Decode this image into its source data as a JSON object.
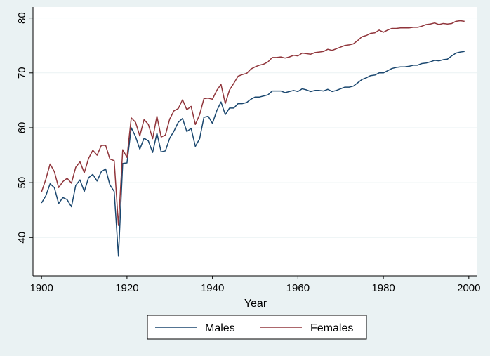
{
  "chart_data": {
    "type": "line",
    "title": "",
    "xlabel": "Year",
    "ylabel": "",
    "xlim": [
      1898,
      2002
    ],
    "ylim": [
      33,
      82
    ],
    "x_ticks": [
      1900,
      1920,
      1940,
      1960,
      1980,
      2000
    ],
    "y_ticks": [
      40,
      50,
      60,
      70,
      80
    ],
    "grid": "horizontal",
    "legend": "bottom",
    "x": [
      1900,
      1901,
      1902,
      1903,
      1904,
      1905,
      1906,
      1907,
      1908,
      1909,
      1910,
      1911,
      1912,
      1913,
      1914,
      1915,
      1916,
      1917,
      1918,
      1919,
      1920,
      1921,
      1922,
      1923,
      1924,
      1925,
      1926,
      1927,
      1928,
      1929,
      1930,
      1931,
      1932,
      1933,
      1934,
      1935,
      1936,
      1937,
      1938,
      1939,
      1940,
      1941,
      1942,
      1943,
      1944,
      1945,
      1946,
      1947,
      1948,
      1949,
      1950,
      1951,
      1952,
      1953,
      1954,
      1955,
      1956,
      1957,
      1958,
      1959,
      1960,
      1961,
      1962,
      1963,
      1964,
      1965,
      1966,
      1967,
      1968,
      1969,
      1970,
      1971,
      1972,
      1973,
      1974,
      1975,
      1976,
      1977,
      1978,
      1979,
      1980,
      1981,
      1982,
      1983,
      1984,
      1985,
      1986,
      1987,
      1988,
      1989,
      1990,
      1991,
      1992,
      1993,
      1994,
      1995,
      1996,
      1997,
      1998,
      1999
    ],
    "series": [
      {
        "name": "Males",
        "color": "#1a476f",
        "values": [
          46.3,
          47.6,
          49.8,
          49.1,
          46.2,
          47.3,
          46.9,
          45.6,
          49.5,
          50.5,
          48.4,
          50.9,
          51.5,
          50.3,
          52.0,
          52.5,
          49.6,
          48.4,
          36.6,
          53.5,
          53.6,
          60.0,
          58.4,
          56.1,
          58.1,
          57.6,
          55.5,
          59.0,
          55.6,
          55.8,
          58.1,
          59.4,
          61.0,
          61.7,
          59.3,
          59.9,
          56.6,
          58.0,
          61.9,
          62.1,
          60.8,
          63.1,
          64.7,
          62.4,
          63.6,
          63.6,
          64.4,
          64.4,
          64.6,
          65.2,
          65.6,
          65.6,
          65.8,
          66.0,
          66.7,
          66.7,
          66.7,
          66.4,
          66.6,
          66.8,
          66.6,
          67.1,
          66.9,
          66.6,
          66.8,
          66.8,
          66.7,
          67.0,
          66.6,
          66.8,
          67.1,
          67.4,
          67.4,
          67.6,
          68.2,
          68.8,
          69.1,
          69.5,
          69.6,
          70.0,
          70.0,
          70.4,
          70.8,
          71.0,
          71.1,
          71.1,
          71.2,
          71.4,
          71.4,
          71.7,
          71.8,
          72.0,
          72.3,
          72.2,
          72.4,
          72.5,
          73.1,
          73.6,
          73.8,
          73.9
        ]
      },
      {
        "name": "Females",
        "color": "#90353b",
        "values": [
          48.3,
          50.6,
          53.4,
          52.0,
          49.1,
          50.2,
          50.8,
          49.9,
          52.8,
          53.8,
          51.8,
          54.4,
          55.9,
          55.0,
          56.8,
          56.8,
          54.3,
          54.0,
          42.2,
          56.0,
          54.6,
          61.8,
          61.0,
          58.5,
          61.5,
          60.6,
          58.0,
          62.1,
          58.3,
          58.7,
          61.6,
          63.1,
          63.5,
          65.1,
          63.3,
          63.9,
          60.6,
          62.4,
          65.3,
          65.4,
          65.2,
          66.8,
          67.9,
          64.4,
          66.9,
          68.1,
          69.4,
          69.7,
          69.9,
          70.7,
          71.1,
          71.4,
          71.6,
          72.0,
          72.8,
          72.8,
          72.9,
          72.7,
          72.9,
          73.2,
          73.1,
          73.6,
          73.5,
          73.4,
          73.7,
          73.8,
          73.9,
          74.3,
          74.1,
          74.4,
          74.7,
          75.0,
          75.1,
          75.3,
          75.9,
          76.6,
          76.8,
          77.2,
          77.3,
          77.8,
          77.4,
          77.8,
          78.1,
          78.1,
          78.2,
          78.2,
          78.2,
          78.3,
          78.3,
          78.5,
          78.8,
          78.9,
          79.1,
          78.8,
          79.0,
          78.9,
          79.0,
          79.4,
          79.5,
          79.4
        ]
      }
    ]
  }
}
